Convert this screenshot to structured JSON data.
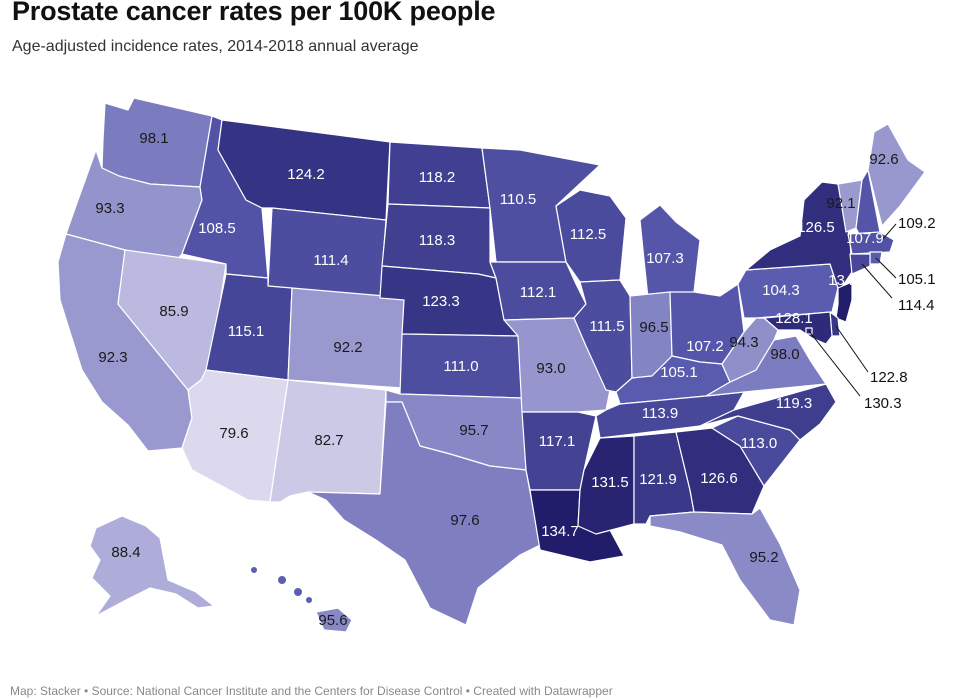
{
  "title": "Prostate cancer rates per 100K people",
  "subtitle": "Age-adjusted incidence rates, 2014-2018 annual average",
  "footer": "Map: Stacker • Source: National Cancer Institute and the Centers for Disease Control • Created with Datawrapper",
  "color_scale": {
    "min_value": 79.6,
    "max_value": 134.7,
    "min_color": "#dcd9ef",
    "mid_color": "#5a5cb0",
    "max_color": "#221d6b"
  },
  "states": [
    {
      "code": "WA",
      "value": "98.1"
    },
    {
      "code": "OR",
      "value": "93.3"
    },
    {
      "code": "CA",
      "value": "92.3"
    },
    {
      "code": "NV",
      "value": "85.9"
    },
    {
      "code": "ID",
      "value": "108.5"
    },
    {
      "code": "MT",
      "value": "124.2"
    },
    {
      "code": "WY",
      "value": "111.4"
    },
    {
      "code": "UT",
      "value": "115.1"
    },
    {
      "code": "AZ",
      "value": "79.6"
    },
    {
      "code": "CO",
      "value": "92.2"
    },
    {
      "code": "NM",
      "value": "82.7"
    },
    {
      "code": "ND",
      "value": "118.2"
    },
    {
      "code": "SD",
      "value": "118.3"
    },
    {
      "code": "NE",
      "value": "123.3"
    },
    {
      "code": "KS",
      "value": "111.0"
    },
    {
      "code": "OK",
      "value": "95.7"
    },
    {
      "code": "TX",
      "value": "97.6"
    },
    {
      "code": "MN",
      "value": "110.5"
    },
    {
      "code": "IA",
      "value": "112.1"
    },
    {
      "code": "MO",
      "value": "93.0"
    },
    {
      "code": "AR",
      "value": "117.1"
    },
    {
      "code": "LA",
      "value": "134.7"
    },
    {
      "code": "WI",
      "value": "112.5"
    },
    {
      "code": "IL",
      "value": "111.5"
    },
    {
      "code": "MI",
      "value": "107.3"
    },
    {
      "code": "IN",
      "value": "96.5"
    },
    {
      "code": "OH",
      "value": "107.2"
    },
    {
      "code": "KY",
      "value": "105.1"
    },
    {
      "code": "TN",
      "value": "113.9"
    },
    {
      "code": "MS",
      "value": "131.5"
    },
    {
      "code": "AL",
      "value": "121.9"
    },
    {
      "code": "GA",
      "value": "126.6"
    },
    {
      "code": "FL",
      "value": "95.2"
    },
    {
      "code": "SC",
      "value": "113.0"
    },
    {
      "code": "NC",
      "value": "119.3"
    },
    {
      "code": "VA",
      "value": "98.0"
    },
    {
      "code": "WV",
      "value": "94.3"
    },
    {
      "code": "PA",
      "value": "104.3"
    },
    {
      "code": "NY",
      "value": "126.5"
    },
    {
      "code": "VT",
      "value": "92.1"
    },
    {
      "code": "NH",
      "value": "107.9"
    },
    {
      "code": "ME",
      "value": "92.6"
    },
    {
      "code": "MA",
      "value": "109.2"
    },
    {
      "code": "RI",
      "value": "105.1"
    },
    {
      "code": "CT",
      "value": "114.4"
    },
    {
      "code": "NJ",
      "value": "134.4"
    },
    {
      "code": "DE",
      "value": "122.8"
    },
    {
      "code": "MD",
      "value": "128.1"
    },
    {
      "code": "DC",
      "value": "130.3"
    },
    {
      "code": "AK",
      "value": "88.4"
    },
    {
      "code": "HI",
      "value": "95.6"
    }
  ]
}
